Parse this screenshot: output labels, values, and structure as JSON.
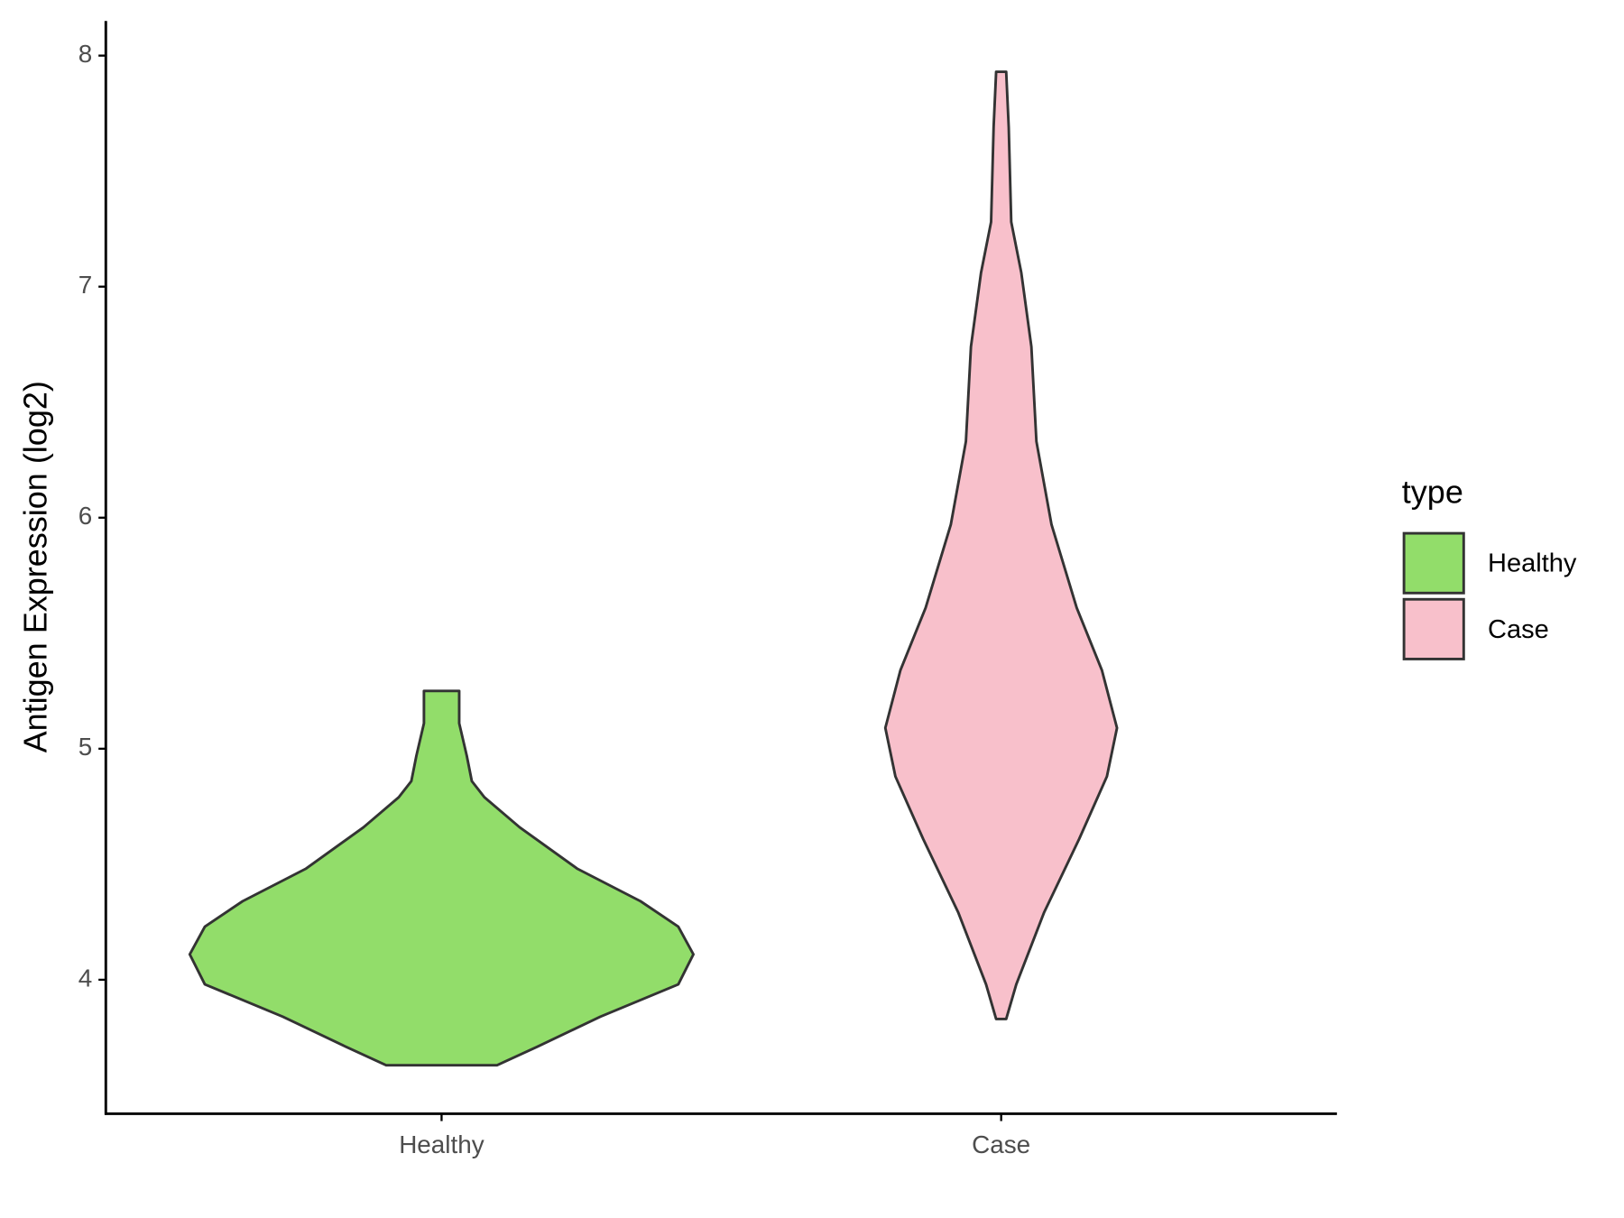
{
  "chart_data": {
    "type": "violin",
    "y_label": "Antigen Expression (log2)",
    "categories": [
      "Healthy",
      "Case"
    ],
    "ylim": [
      3.42,
      8.15
    ],
    "yticks": [
      4,
      5,
      6,
      7,
      8
    ],
    "legend_title": "type",
    "legend_position": "right",
    "series": [
      {
        "name": "Healthy",
        "color": "#92dd6a",
        "y": [
          5.25,
          5.11,
          4.97,
          4.86,
          4.79,
          4.66,
          4.48,
          4.34,
          4.23,
          4.11,
          3.98,
          3.84,
          3.71,
          3.63
        ],
        "width": [
          0.07,
          0.07,
          0.1,
          0.12,
          0.17,
          0.31,
          0.54,
          0.79,
          0.94,
          1.0,
          0.94,
          0.63,
          0.38,
          0.22
        ]
      },
      {
        "name": "Case",
        "color": "#f8c0cb",
        "y": [
          7.93,
          7.69,
          7.28,
          7.06,
          6.74,
          6.33,
          5.97,
          5.61,
          5.34,
          5.09,
          4.88,
          4.61,
          4.29,
          3.98,
          3.83
        ],
        "width": [
          0.02,
          0.03,
          0.04,
          0.08,
          0.12,
          0.14,
          0.2,
          0.3,
          0.4,
          0.46,
          0.42,
          0.31,
          0.17,
          0.06,
          0.02
        ]
      }
    ]
  }
}
